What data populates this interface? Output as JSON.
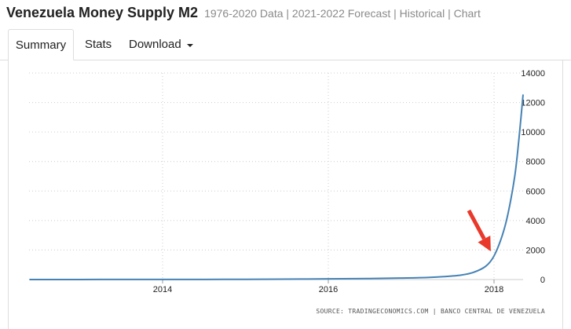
{
  "header": {
    "title": "Venezuela Money Supply M2",
    "subtitle": "1976-2020 Data | 2021-2022 Forecast | Historical | Chart"
  },
  "tabs": [
    {
      "label": "Summary",
      "active": true
    },
    {
      "label": "Stats",
      "active": false
    },
    {
      "label": "Download",
      "active": false
    }
  ],
  "source": "SOURCE: TRADINGECONOMICS.COM | BANCO CENTRAL DE VENEZUELA",
  "colors": {
    "line": "#4682b4",
    "arrow": "#e8392b",
    "grid": "#cccccc"
  },
  "chart_data": {
    "type": "line",
    "title": "",
    "xlabel": "",
    "ylabel": "",
    "x_ticks": [
      "2014",
      "2016",
      "2018"
    ],
    "y_ticks": [
      "0",
      "2000",
      "4000",
      "6000",
      "8000",
      "10000",
      "12000",
      "14000"
    ],
    "xlim": [
      2012.4,
      2018.5
    ],
    "ylim": [
      0,
      14000
    ],
    "y_axis_position": "right",
    "grid": "horizontal dotted",
    "series": [
      {
        "x": [
          2012.4,
          2013.0,
          2013.5,
          2014.0,
          2014.5,
          2015.0,
          2015.5,
          2016.0,
          2016.5,
          2016.9,
          2017.2,
          2017.4,
          2017.6,
          2017.75,
          2017.9,
          2018.0,
          2018.1,
          2018.17,
          2018.25,
          2018.3,
          2018.35
        ],
        "y": [
          2,
          3,
          4,
          6,
          9,
          15,
          28,
          45,
          70,
          100,
          140,
          200,
          300,
          480,
          900,
          1600,
          3000,
          4500,
          7000,
          9500,
          12500
        ]
      }
    ],
    "annotations": [
      {
        "type": "arrow",
        "points_to": {
          "x": 2017.98,
          "y": 1700
        }
      }
    ]
  }
}
